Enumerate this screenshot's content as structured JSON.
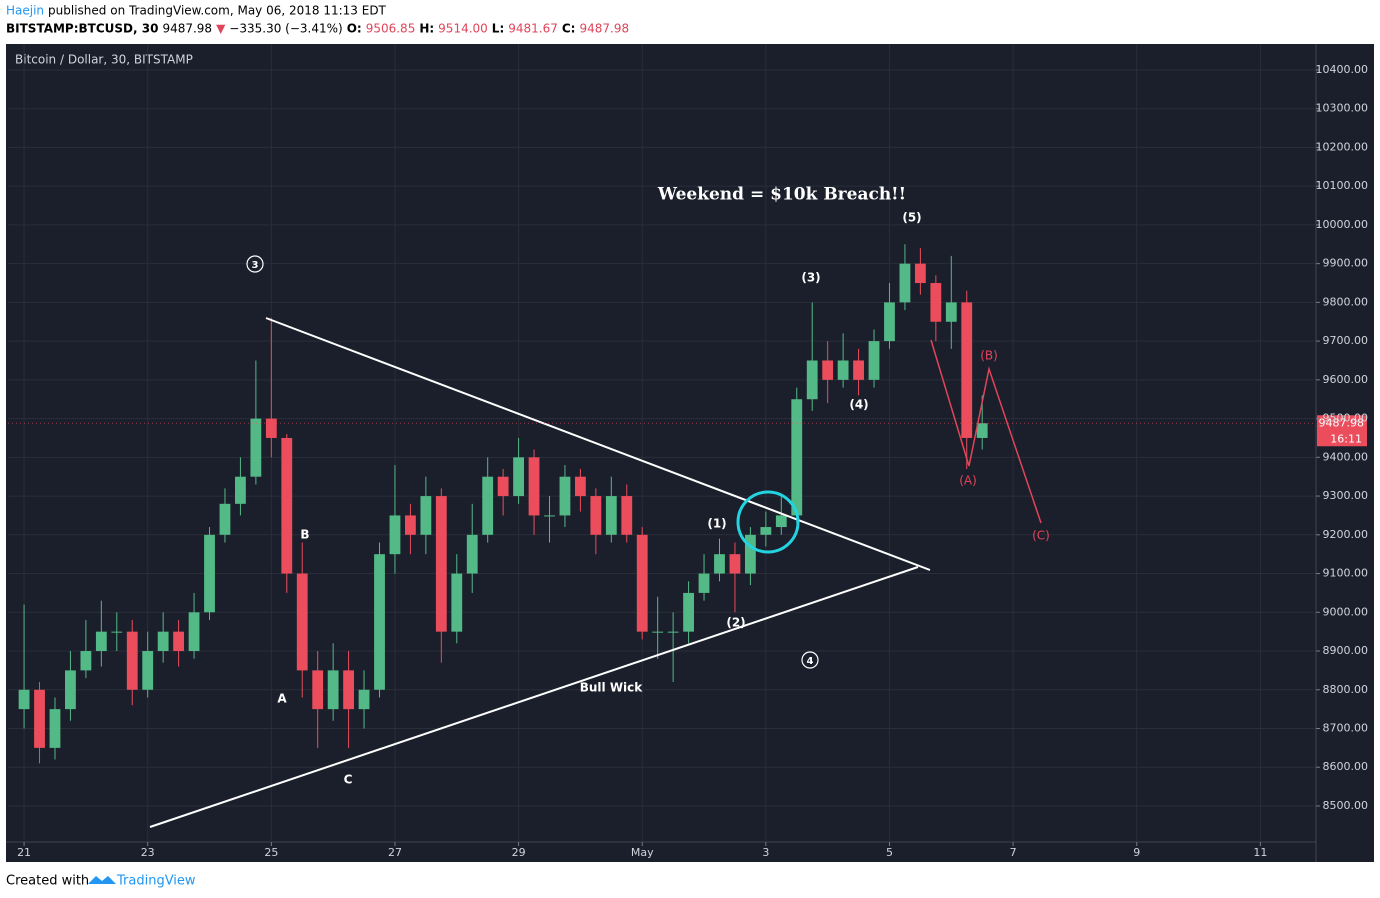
{
  "header": {
    "author": "Haejin",
    "published": "published on TradingView.com, May 06, 2018 11:13 EDT",
    "symbol": "BITSTAMP:BTCUSD, 30",
    "last": "9487.98",
    "arrow": "▼",
    "change": "−335.30 (−3.41%)",
    "o_label": "O:",
    "o": "9506.85",
    "h_label": "H:",
    "h": "9514.00",
    "l_label": "L:",
    "l": "9481.67",
    "c_label": "C:",
    "c": "9487.98"
  },
  "chart_data": {
    "type": "candlestick",
    "title": "Bitcoin / Dollar, 30, BITSTAMP",
    "x": [
      0,
      0.25,
      0.5,
      0.75,
      1,
      1.25,
      1.5,
      1.75,
      2,
      2.25,
      2.5,
      2.75,
      3,
      3.25,
      3.5,
      3.75,
      4,
      4.25,
      4.5,
      4.75,
      5,
      5.25,
      5.5,
      5.75,
      6,
      6.25,
      6.5,
      6.75,
      7,
      7.25,
      7.5,
      7.75,
      8,
      8.25,
      8.5,
      8.75,
      9,
      9.25,
      9.5,
      9.75,
      10,
      10.25,
      10.5,
      10.75,
      11,
      11.25,
      11.5,
      11.75,
      12,
      12.25,
      12.5,
      12.75,
      13,
      13.25,
      13.5,
      13.75,
      14,
      14.25,
      14.5,
      14.75,
      15,
      15.25,
      15.5
    ],
    "open": [
      8750,
      8800,
      8650,
      8750,
      8850,
      8900,
      8950,
      8950,
      8800,
      8900,
      8950,
      8900,
      9000,
      9200,
      9280,
      9350,
      9500,
      9450,
      9100,
      8850,
      8750,
      8850,
      8750,
      8800,
      9150,
      9250,
      9200,
      9300,
      8950,
      9100,
      9200,
      9350,
      9300,
      9400,
      9250,
      9250,
      9350,
      9300,
      9200,
      9300,
      9200,
      8950,
      8950,
      8950,
      9050,
      9100,
      9150,
      9100,
      9200,
      9220,
      9250,
      9550,
      9650,
      9600,
      9650,
      9600,
      9700,
      9800,
      9900,
      9850,
      9750,
      9800,
      9450
    ],
    "high": [
      9020,
      8820,
      8780,
      8900,
      8980,
      9030,
      9000,
      8980,
      8950,
      9000,
      8980,
      9050,
      9220,
      9320,
      9400,
      9650,
      9760,
      9460,
      9180,
      8900,
      8920,
      8900,
      8850,
      9180,
      9380,
      9280,
      9350,
      9320,
      9150,
      9280,
      9400,
      9370,
      9450,
      9420,
      9300,
      9380,
      9370,
      9320,
      9350,
      9330,
      9220,
      9040,
      9000,
      9080,
      9150,
      9190,
      9180,
      9220,
      9260,
      9300,
      9580,
      9800,
      9700,
      9720,
      9680,
      9730,
      9850,
      9950,
      9940,
      9870,
      9920,
      9830,
      9560
    ],
    "low": [
      8700,
      8610,
      8620,
      8720,
      8830,
      8860,
      8900,
      8760,
      8780,
      8870,
      8860,
      8880,
      8980,
      9180,
      9250,
      9330,
      9400,
      9050,
      8780,
      8650,
      8720,
      8650,
      8700,
      8780,
      9100,
      9150,
      9150,
      8870,
      8920,
      9050,
      9180,
      9250,
      9280,
      9200,
      9180,
      9220,
      9260,
      9150,
      9180,
      9180,
      8930,
      8880,
      8820,
      8920,
      9030,
      9080,
      9000,
      9070,
      9170,
      9200,
      9230,
      9520,
      9540,
      9580,
      9560,
      9580,
      9680,
      9780,
      9820,
      9700,
      9680,
      9370,
      9420
    ],
    "close": [
      8800,
      8650,
      8750,
      8850,
      8900,
      8950,
      8950,
      8800,
      8900,
      8950,
      8900,
      9000,
      9200,
      9280,
      9350,
      9500,
      9450,
      9100,
      8850,
      8750,
      8850,
      8750,
      8800,
      9150,
      9250,
      9200,
      9300,
      8950,
      9100,
      9200,
      9350,
      9300,
      9400,
      9250,
      9250,
      9350,
      9300,
      9200,
      9300,
      9200,
      8950,
      8950,
      8950,
      9050,
      9100,
      9150,
      9100,
      9200,
      9220,
      9250,
      9550,
      9650,
      9600,
      9650,
      9600,
      9700,
      9800,
      9900,
      9850,
      9750,
      9800,
      9450,
      9487.98
    ],
    "up_color": "#53b987",
    "down_color": "#eb4d5c",
    "xlim": [
      -0.26,
      20.9
    ],
    "ylim": [
      8407,
      10467
    ],
    "xticks": [
      {
        "value": 0,
        "label": "21"
      },
      {
        "value": 2,
        "label": "23"
      },
      {
        "value": 4,
        "label": "25"
      },
      {
        "value": 6,
        "label": "27"
      },
      {
        "value": 8,
        "label": "29"
      },
      {
        "value": 10,
        "label": "May"
      },
      {
        "value": 12,
        "label": "3"
      },
      {
        "value": 14,
        "label": "5"
      },
      {
        "value": 16,
        "label": "7"
      },
      {
        "value": 18,
        "label": "9"
      },
      {
        "value": 20,
        "label": "11"
      }
    ],
    "yticks": [
      {
        "value": 8500,
        "label": "8500.00"
      },
      {
        "value": 8600,
        "label": "8600.00"
      },
      {
        "value": 8700,
        "label": "8700.00"
      },
      {
        "value": 8800,
        "label": "8800.00"
      },
      {
        "value": 8900,
        "label": "8900.00"
      },
      {
        "value": 9000,
        "label": "9000.00"
      },
      {
        "value": 9100,
        "label": "9100.00"
      },
      {
        "value": 9200,
        "label": "9200.00"
      },
      {
        "value": 9300,
        "label": "9300.00"
      },
      {
        "value": 9400,
        "label": "9400.00"
      },
      {
        "value": 9500,
        "label": "9500.00"
      },
      {
        "value": 9600,
        "label": "9600.00"
      },
      {
        "value": 9700,
        "label": "9700.00"
      },
      {
        "value": 9800,
        "label": "9800.00"
      },
      {
        "value": 9900,
        "label": "9900.00"
      },
      {
        "value": 10000,
        "label": "10000.00"
      },
      {
        "value": 10100,
        "label": "10100.00"
      },
      {
        "value": 10200,
        "label": "10200.00"
      },
      {
        "value": 10300,
        "label": "10300.00"
      },
      {
        "value": 10400,
        "label": "10400.00"
      }
    ],
    "grid": true,
    "price_tag": "9487.98",
    "countdown": "16:11",
    "annotations": {
      "headline": "Weekend = $10k Breach!!",
      "c3": "3",
      "c4": "4",
      "b": "B",
      "a": "A",
      "c": "C",
      "bull_wick": "Bull Wick",
      "w1": "(1)",
      "w2": "(2)",
      "w3": "(3)",
      "w4": "(4)",
      "w5": "(5)",
      "ra": "(A)",
      "rb": "(B)",
      "rc": "(C)"
    }
  },
  "footer": {
    "created": "Created with",
    "brand": "TradingView"
  }
}
